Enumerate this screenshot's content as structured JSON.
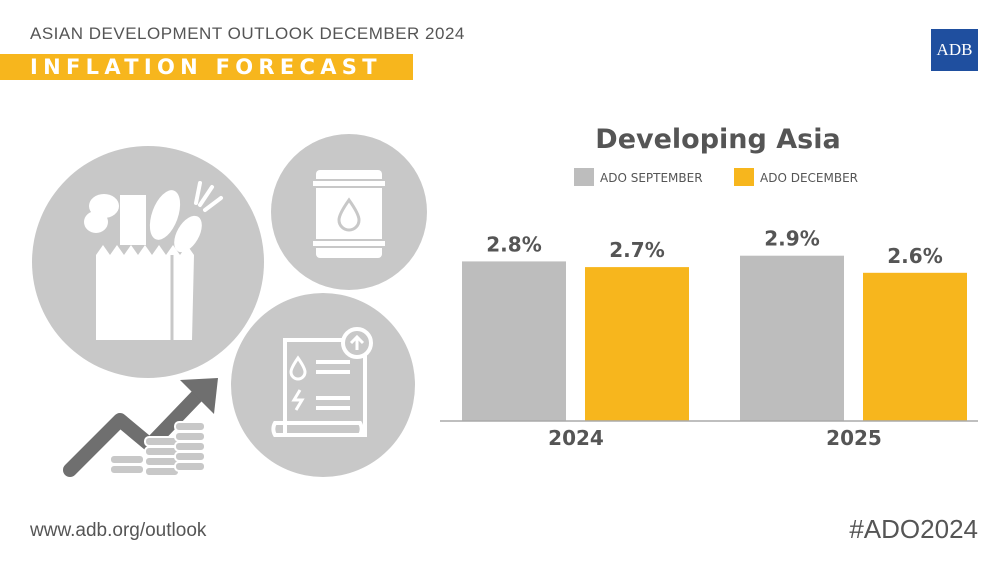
{
  "header": {
    "supertitle": "ASIAN DEVELOPMENT OUTLOOK DECEMBER 2024",
    "banner": "INFLATION FORECAST"
  },
  "logo": {
    "text": "ADB"
  },
  "footer": {
    "url": "www.adb.org/outlook",
    "hashtag": "#ADO2024"
  },
  "colors": {
    "september": "#bdbdbd",
    "december": "#f7b61d",
    "banner": "#f7b61d",
    "logo": "#1f4f9f",
    "illustration": "#c8c8c8"
  },
  "icons": [
    "grocery-bag-icon",
    "oil-barrel-icon",
    "utility-bill-icon",
    "rising-arrow-coins-icon"
  ],
  "chart_data": {
    "type": "bar",
    "title": "Developing Asia",
    "categories": [
      "2024",
      "2025"
    ],
    "series": [
      {
        "name": "ADO SEPTEMBER",
        "values": [
          2.8,
          2.9
        ],
        "labels": [
          "2.8%",
          "2.9%"
        ]
      },
      {
        "name": "ADO DECEMBER",
        "values": [
          2.7,
          2.6
        ],
        "labels": [
          "2.7%",
          "2.6%"
        ]
      }
    ],
    "ylim": [
      0,
      3.2
    ],
    "grid": false,
    "legend": "top"
  }
}
